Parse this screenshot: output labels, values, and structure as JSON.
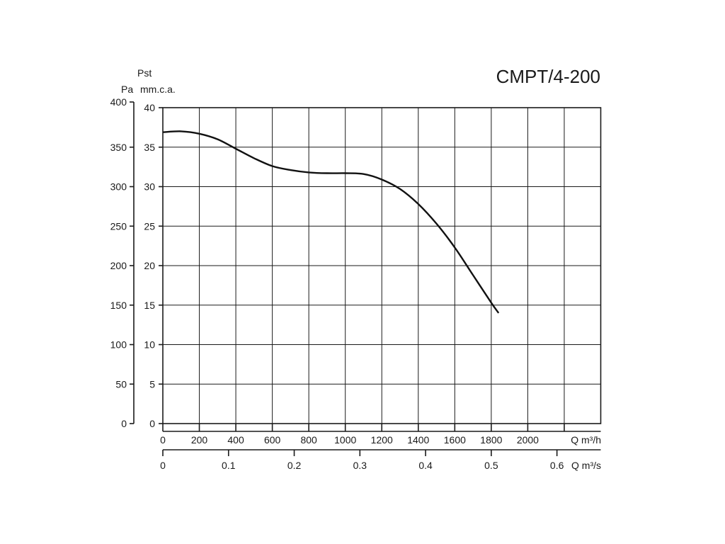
{
  "chart_data": {
    "type": "line",
    "title": "CMPT/4-200",
    "y_label_main": "Pst",
    "y_unit_left": "Pa",
    "y_unit_inner": "mm.c.a.",
    "x_unit_main": "Q m³/h",
    "x_unit_secondary": "Q m³/s",
    "ylim_mmca": [
      0,
      40
    ],
    "ylim_pa": [
      0,
      400
    ],
    "xlim_m3h": [
      0,
      2400
    ],
    "y_ticks_mmca": [
      "0",
      "5",
      "10",
      "15",
      "20",
      "25",
      "30",
      "35",
      "40"
    ],
    "y_ticks_pa": [
      "0",
      "50",
      "100",
      "150",
      "200",
      "250",
      "300",
      "350",
      "400"
    ],
    "x_ticks_m3h": [
      "0",
      "200",
      "400",
      "600",
      "800",
      "1000",
      "1200",
      "1400",
      "1600",
      "1800",
      "2000"
    ],
    "x_ticks_m3s": [
      "0",
      "0.1",
      "0.2",
      "0.3",
      "0.4",
      "0.5",
      "0.6"
    ],
    "x_tick_values_m3s": [
      0,
      0.1,
      0.2,
      0.3,
      0.4,
      0.5,
      0.6
    ],
    "grid": true,
    "series": [
      {
        "x": [
          0,
          100,
          200,
          300,
          400,
          500,
          600,
          700,
          800,
          900,
          1000,
          1100,
          1200,
          1300,
          1400,
          1500,
          1600,
          1700,
          1800,
          1840
        ],
        "y": [
          36.9,
          37.0,
          36.7,
          36.0,
          34.8,
          33.6,
          32.6,
          32.1,
          31.8,
          31.7,
          31.7,
          31.6,
          30.9,
          29.7,
          27.8,
          25.3,
          22.3,
          18.8,
          15.3,
          14.0
        ]
      }
    ]
  }
}
